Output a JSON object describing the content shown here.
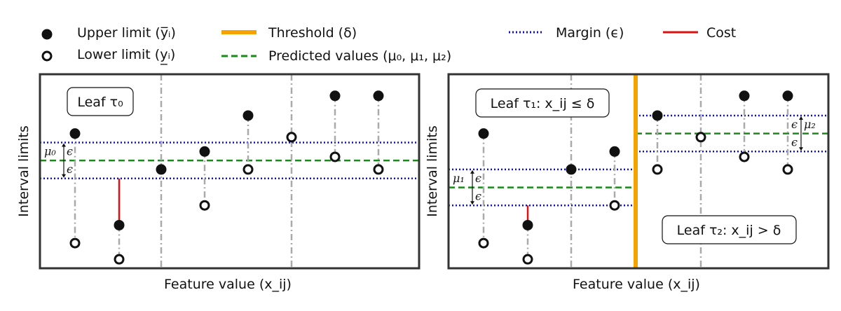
{
  "legend": {
    "upper": "Upper limit (y̅ᵢ)",
    "lower": "Lower limit (y̲ᵢ)",
    "threshold": "Threshold (δ)",
    "predicted": "Predicted values (μ₀, μ₁, μ₂)",
    "margin": "Margin (ϵ)",
    "cost": "Cost"
  },
  "colors": {
    "threshold": "#f5a300",
    "predicted": "#1a8a1a",
    "margin": "#1010cc",
    "cost": "#e01010",
    "connector": "#aaaaaa",
    "marker": "#111111"
  },
  "chart_data": [
    {
      "type": "scatter",
      "ylabel": "Interval limits",
      "xlabel": "Feature value (x_ij)",
      "leaf_labels": [
        "Leaf τ₀"
      ],
      "eps_label": "ϵ",
      "mu_labels": [
        "μ₀"
      ],
      "predicted": [
        {
          "value": 0.0
        }
      ],
      "margin": 1.0,
      "points": [
        {
          "x": 1,
          "upper": 1.5,
          "lower": -4.6
        },
        {
          "x": 2,
          "upper": -3.6,
          "lower": -5.5
        },
        {
          "x": 3,
          "upper": -0.5,
          "lower": null,
          "dashdot": true
        },
        {
          "x": 4,
          "upper": 0.5,
          "lower": -2.5
        },
        {
          "x": 5,
          "upper": 2.5,
          "lower": -0.5
        },
        {
          "x": 6,
          "upper": null,
          "lower": 1.3,
          "dashdot": true
        },
        {
          "x": 7,
          "upper": 3.6,
          "lower": 0.2
        },
        {
          "x": 8,
          "upper": 3.6,
          "lower": -0.5
        }
      ]
    },
    {
      "type": "scatter",
      "ylabel": "Interval limits",
      "xlabel": "Feature value (x_ij)",
      "leaf_labels": [
        "Leaf τ₁: x_ij ≤ δ",
        "Leaf τ₂: x_ij > δ"
      ],
      "eps_label": "ϵ",
      "mu_labels": [
        "μ₁",
        "μ₂"
      ],
      "threshold_x": 4.5,
      "predicted": [
        {
          "value": -1.5,
          "from": 0,
          "to": 4.5
        },
        {
          "value": 1.5,
          "from": 4.5,
          "to": 9
        }
      ],
      "margin": 1.0,
      "points": [
        {
          "x": 1,
          "upper": 1.5,
          "lower": -4.6
        },
        {
          "x": 2,
          "upper": -3.6,
          "lower": -5.5
        },
        {
          "x": 3,
          "upper": -0.5,
          "lower": null,
          "dashdot": true
        },
        {
          "x": 4,
          "upper": 0.5,
          "lower": -2.5
        },
        {
          "x": 5,
          "upper": 2.5,
          "lower": -0.5
        },
        {
          "x": 6,
          "upper": null,
          "lower": 1.3,
          "dashdot": true
        },
        {
          "x": 7,
          "upper": 3.6,
          "lower": 0.2
        },
        {
          "x": 8,
          "upper": 3.6,
          "lower": -0.5
        }
      ]
    }
  ]
}
